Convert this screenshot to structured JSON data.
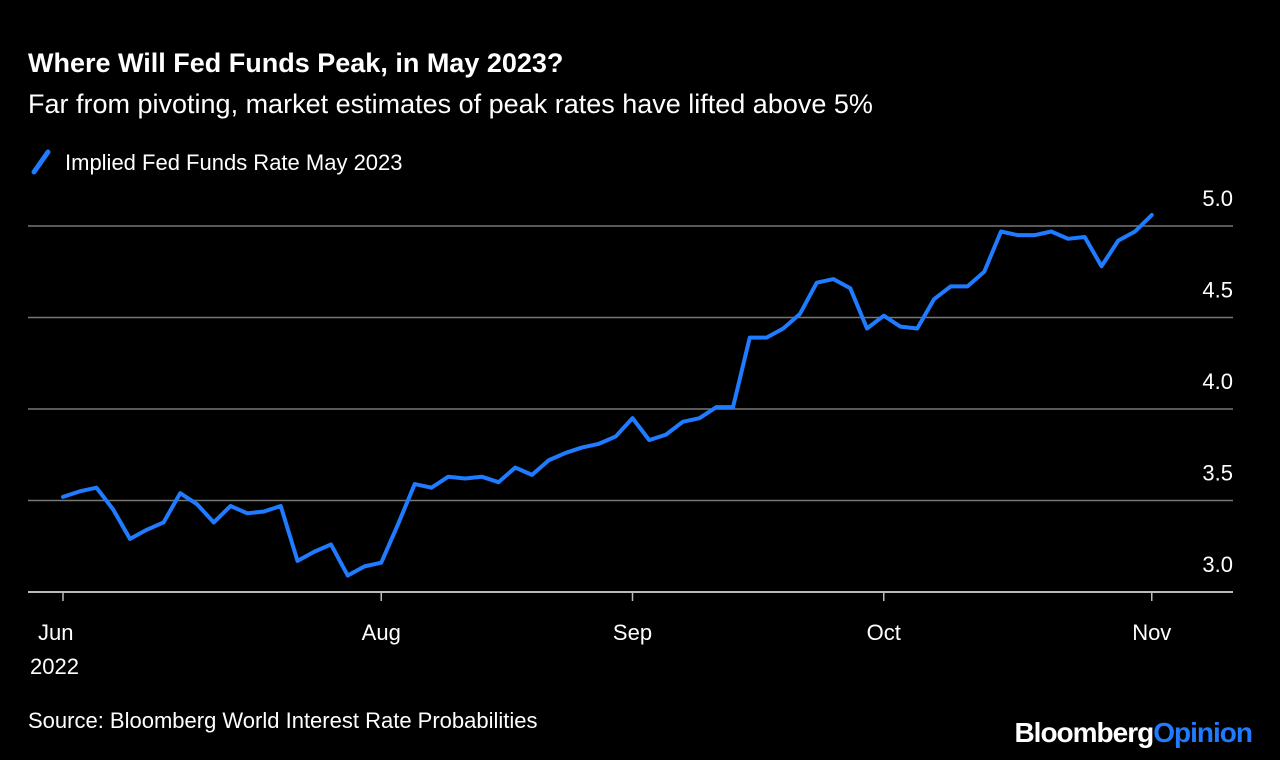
{
  "chart_data": {
    "type": "line",
    "title": "Where Will Fed Funds Peak, in May 2023?",
    "subtitle": "Far from pivoting, market estimates of peak rates have lifted above 5%",
    "categories": [
      "Jun",
      null,
      null,
      null,
      null,
      null,
      null,
      null,
      null,
      null,
      null,
      null,
      null,
      null,
      null,
      null,
      null,
      null,
      null,
      "Aug",
      null,
      null,
      null,
      null,
      null,
      null,
      null,
      null,
      null,
      null,
      null,
      null,
      null,
      null,
      "Sep",
      null,
      null,
      null,
      null,
      null,
      null,
      null,
      null,
      null,
      null,
      null,
      null,
      null,
      null,
      "Oct",
      null,
      null,
      null,
      null,
      null,
      null,
      null,
      null,
      null,
      null,
      null,
      null,
      null,
      null,
      null,
      "Nov"
    ],
    "x_year_label": "2022",
    "series": [
      {
        "name": "Implied Fed Funds Rate May 2023",
        "color": "#1f7bff",
        "values": [
          3.52,
          3.55,
          3.57,
          3.45,
          3.29,
          3.34,
          3.38,
          3.54,
          3.48,
          3.38,
          3.47,
          3.43,
          3.44,
          3.47,
          3.17,
          3.22,
          3.26,
          3.09,
          3.14,
          3.16,
          3.37,
          3.59,
          3.57,
          3.63,
          3.62,
          3.63,
          3.6,
          3.68,
          3.64,
          3.72,
          3.76,
          3.79,
          3.81,
          3.85,
          3.95,
          3.83,
          3.86,
          3.93,
          3.95,
          4.01,
          4.01,
          4.39,
          4.39,
          4.44,
          4.52,
          4.69,
          4.71,
          4.66,
          4.44,
          4.51,
          4.45,
          4.44,
          4.6,
          4.67,
          4.67,
          4.75,
          4.97,
          4.95,
          4.95,
          4.97,
          4.93,
          4.94,
          4.78,
          4.92,
          4.97,
          5.06
        ]
      }
    ],
    "ylim": [
      3,
      5.1
    ],
    "yticks": [
      {
        "value": 3,
        "label": "3.0"
      },
      3.5,
      {
        "value": 4,
        "label": "4.0"
      },
      4.5,
      {
        "value": 5,
        "label": "5.0"
      }
    ],
    "grid": true,
    "source": "Source: Bloomberg World Interest Rate Probabilities"
  },
  "branding": {
    "brand": "Bloomberg",
    "section": "Opinion"
  }
}
